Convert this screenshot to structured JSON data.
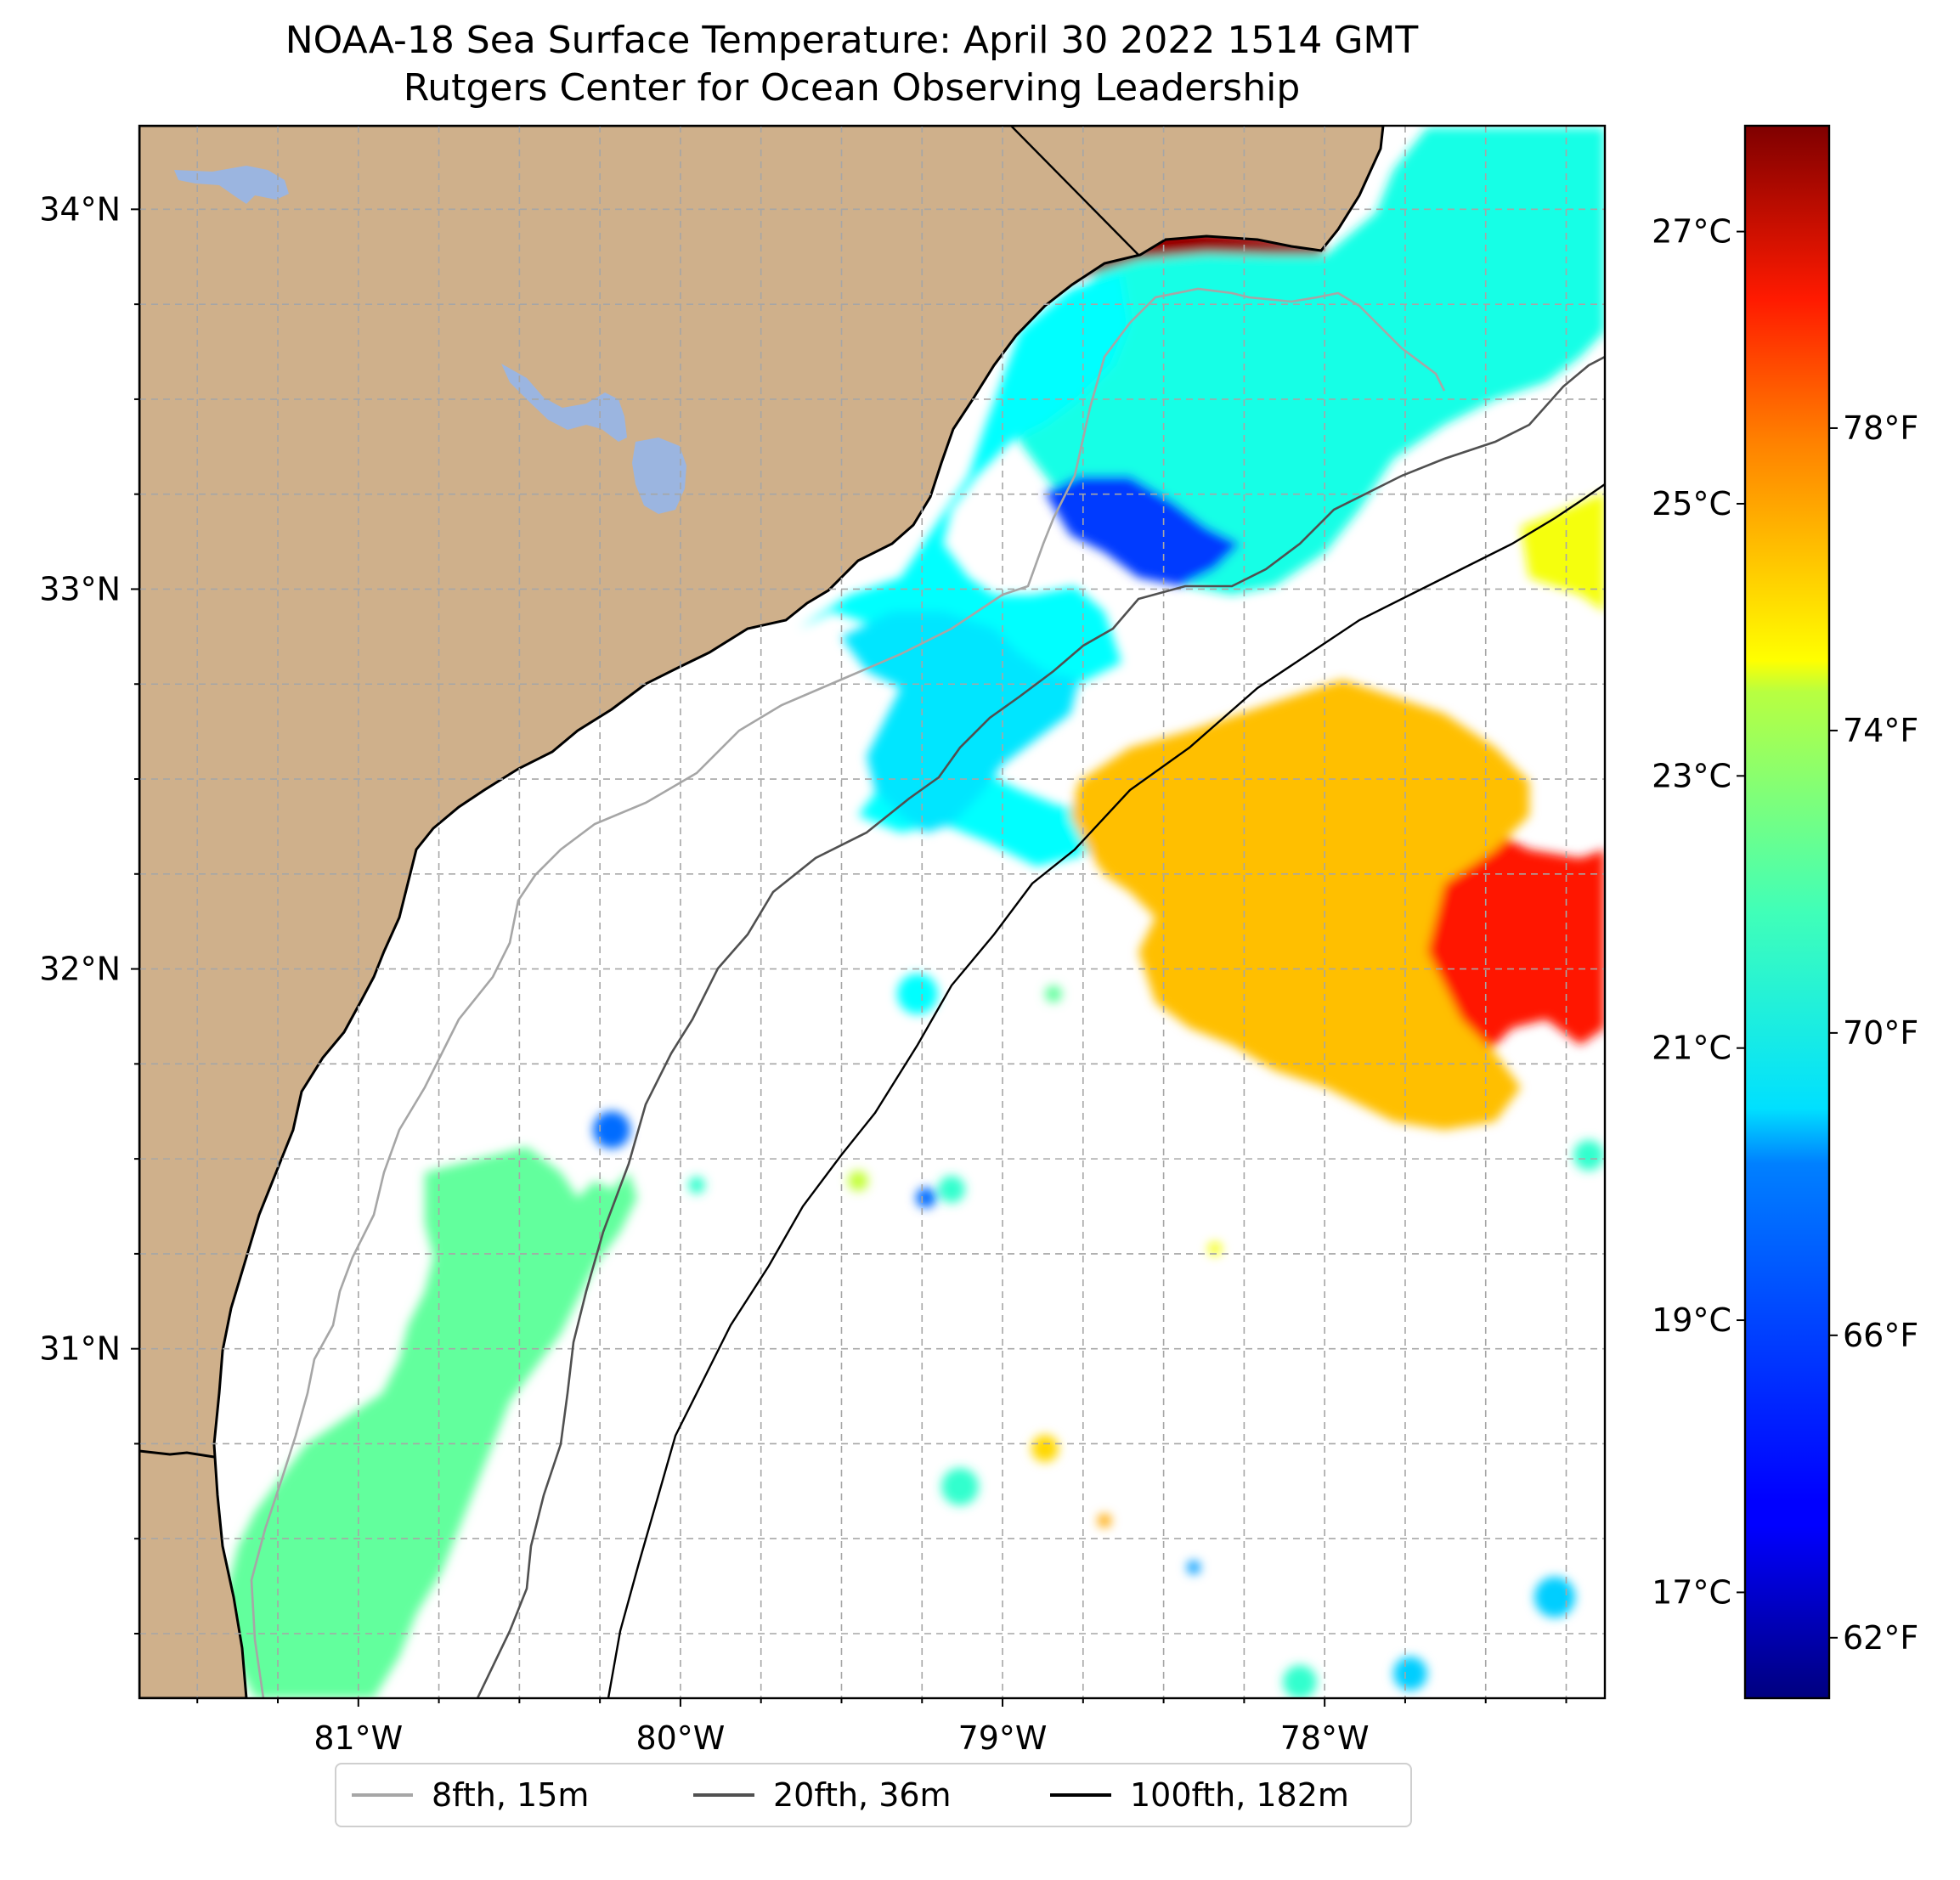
{
  "title": {
    "line1": "NOAA-18 Sea Surface Temperature: April 30 2022 1514 GMT",
    "line2": "Rutgers Center for Ocean Observing Leadership"
  },
  "map": {
    "extent": {
      "lon_min": -81.68,
      "lon_max": -77.13,
      "lat_min": 30.08,
      "lat_max": 34.22
    },
    "lat_ticks": [
      {
        "value": 34,
        "label": "34°N"
      },
      {
        "value": 33,
        "label": "33°N"
      },
      {
        "value": 32,
        "label": "32°N"
      },
      {
        "value": 31,
        "label": "31°N"
      }
    ],
    "lon_ticks": [
      {
        "value": -81,
        "label": "81°W"
      },
      {
        "value": -80,
        "label": "80°W"
      },
      {
        "value": -79,
        "label": "79°W"
      },
      {
        "value": -78,
        "label": "78°W"
      }
    ],
    "gridlines": "dashed, 0.25° spacing",
    "colors": {
      "land": "#cfb08b",
      "lakes": "#9bb5e0",
      "ocean_no_data": "#ffffff",
      "coastline": "#000000"
    }
  },
  "colorbar": {
    "colormap": "jet",
    "range_f": [
      61.2,
      82.0
    ],
    "celsius_ticks": [
      {
        "value": 27,
        "label": "27°C"
      },
      {
        "value": 25,
        "label": "25°C"
      },
      {
        "value": 23,
        "label": "23°C"
      },
      {
        "value": 21,
        "label": "21°C"
      },
      {
        "value": 19,
        "label": "19°C"
      },
      {
        "value": 17,
        "label": "17°C"
      }
    ],
    "fahrenheit_ticks": [
      {
        "value": 78,
        "label": "78°F"
      },
      {
        "value": 74,
        "label": "74°F"
      },
      {
        "value": 70,
        "label": "70°F"
      },
      {
        "value": 66,
        "label": "66°F"
      },
      {
        "value": 62,
        "label": "62°F"
      }
    ]
  },
  "legend": {
    "placement": "bottom-center",
    "items": [
      {
        "label": "8fth, 15m",
        "color": "#a6a6a6"
      },
      {
        "label": "20fth, 36m",
        "color": "#505050"
      },
      {
        "label": "100fth, 182m",
        "color": "#000000"
      }
    ]
  },
  "sst_patches": [
    {
      "name": "north-shelf",
      "temp_f": 69.5
    },
    {
      "name": "cape-fear-nearshore",
      "temp_f": 69
    },
    {
      "name": "cold-pocket",
      "temp_f": 65
    },
    {
      "name": "gulf-stream-core",
      "temp_f": 79
    },
    {
      "name": "gulf-stream-edge",
      "temp_f": 75.5
    },
    {
      "name": "mid-shelf",
      "temp_f": 68.5
    },
    {
      "name": "georgia-shelf",
      "temp_f": 71
    },
    {
      "name": "warm-nearshore",
      "temp_f": 81.5
    },
    {
      "name": "east-warm-filament",
      "temp_f": 74
    }
  ]
}
